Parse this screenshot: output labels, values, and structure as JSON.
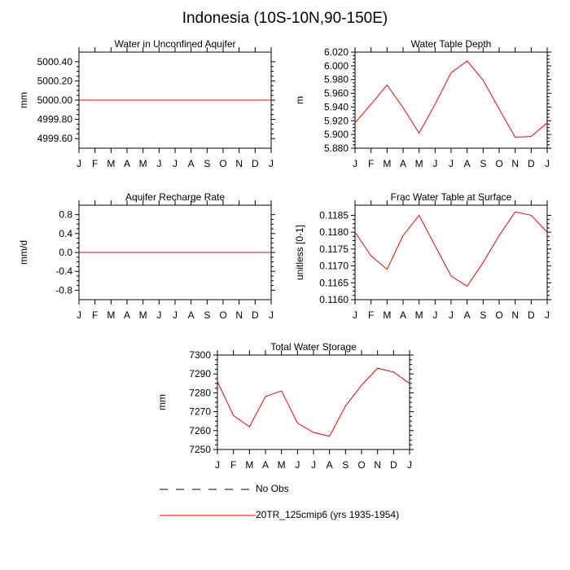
{
  "figure_title": "Indonesia (10S-10N,90-150E)",
  "months": [
    "J",
    "F",
    "M",
    "A",
    "M",
    "J",
    "J",
    "A",
    "S",
    "O",
    "N",
    "D",
    "J"
  ],
  "colors": {
    "model": "#ff0000",
    "obs": "#000000",
    "frame": "#000000"
  },
  "legend": {
    "obs_label": "No Obs",
    "model_label": "20TR_125cmip6 (yrs 1935-1954)"
  },
  "chart_data": [
    {
      "type": "line",
      "title": "Water in Unconfined Aquifer",
      "ylabel": "mm",
      "ylim": [
        4999.5,
        5000.5
      ],
      "yticks": [
        4999.6,
        4999.8,
        5000.0,
        5000.2,
        5000.4
      ],
      "ytick_labels": [
        "4999.60",
        "4999.80",
        "5000.00",
        "5000.20",
        "5000.40"
      ],
      "x": [
        "J",
        "F",
        "M",
        "A",
        "M",
        "J",
        "J",
        "A",
        "S",
        "O",
        "N",
        "D",
        "J"
      ],
      "series": [
        {
          "values": [
            5000,
            5000,
            5000,
            5000,
            5000,
            5000,
            5000,
            5000,
            5000,
            5000,
            5000,
            5000,
            5000
          ]
        }
      ]
    },
    {
      "type": "line",
      "title": "Water Table Depth",
      "ylabel": "m",
      "ylim": [
        5.88,
        6.02
      ],
      "yticks": [
        5.88,
        5.9,
        5.92,
        5.94,
        5.96,
        5.98,
        6.0,
        6.02
      ],
      "ytick_labels": [
        "5.880",
        "5.900",
        "5.920",
        "5.940",
        "5.960",
        "5.980",
        "6.000",
        "6.020"
      ],
      "x": [
        "J",
        "F",
        "M",
        "A",
        "M",
        "J",
        "J",
        "A",
        "S",
        "O",
        "N",
        "D",
        "J"
      ],
      "series": [
        {
          "values": [
            5.917,
            5.944,
            5.972,
            5.939,
            5.902,
            5.944,
            5.99,
            6.007,
            5.979,
            5.937,
            5.896,
            5.897,
            5.917
          ]
        }
      ]
    },
    {
      "type": "line",
      "title": "Aquifer Recharge Rate",
      "ylabel": "mm/d",
      "ylim": [
        -1.0,
        1.0
      ],
      "yticks": [
        -0.8,
        -0.4,
        0.0,
        0.4,
        0.8
      ],
      "ytick_labels": [
        "-0.8",
        "-0.4",
        "0.0",
        "0.4",
        "0.8"
      ],
      "x": [
        "J",
        "F",
        "M",
        "A",
        "M",
        "J",
        "J",
        "A",
        "S",
        "O",
        "N",
        "D",
        "J"
      ],
      "series": [
        {
          "values": [
            0,
            0,
            0,
            0,
            0,
            0,
            0,
            0,
            0,
            0,
            0,
            0,
            0
          ]
        }
      ]
    },
    {
      "type": "line",
      "title": "Frac Water Table at Surface",
      "ylabel": "unitless [0-1]",
      "ylim": [
        0.116,
        0.1188
      ],
      "yticks": [
        0.116,
        0.1165,
        0.117,
        0.1175,
        0.118,
        0.1185
      ],
      "ytick_labels": [
        "0.1160",
        "0.1165",
        "0.1170",
        "0.1175",
        "0.1180",
        "0.1185"
      ],
      "x": [
        "J",
        "F",
        "M",
        "A",
        "M",
        "J",
        "J",
        "A",
        "S",
        "O",
        "N",
        "D",
        "J"
      ],
      "series": [
        {
          "values": [
            0.118,
            0.1173,
            0.1169,
            0.1179,
            0.1185,
            0.1176,
            0.1167,
            0.1164,
            0.1171,
            0.1179,
            0.1186,
            0.1185,
            0.118
          ]
        }
      ]
    },
    {
      "type": "line",
      "title": "Total Water Storage",
      "ylabel": "mm",
      "ylim": [
        7250,
        7300
      ],
      "yticks": [
        7250,
        7260,
        7270,
        7280,
        7290,
        7300
      ],
      "ytick_labels": [
        "7250",
        "7260",
        "7270",
        "7280",
        "7290",
        "7300"
      ],
      "x": [
        "J",
        "F",
        "M",
        "A",
        "M",
        "J",
        "J",
        "A",
        "S",
        "O",
        "N",
        "D",
        "J"
      ],
      "series": [
        {
          "values": [
            7286,
            7268,
            7262,
            7278,
            7281,
            7264,
            7259,
            7257,
            7273,
            7284,
            7293,
            7291,
            7285
          ]
        }
      ]
    }
  ]
}
